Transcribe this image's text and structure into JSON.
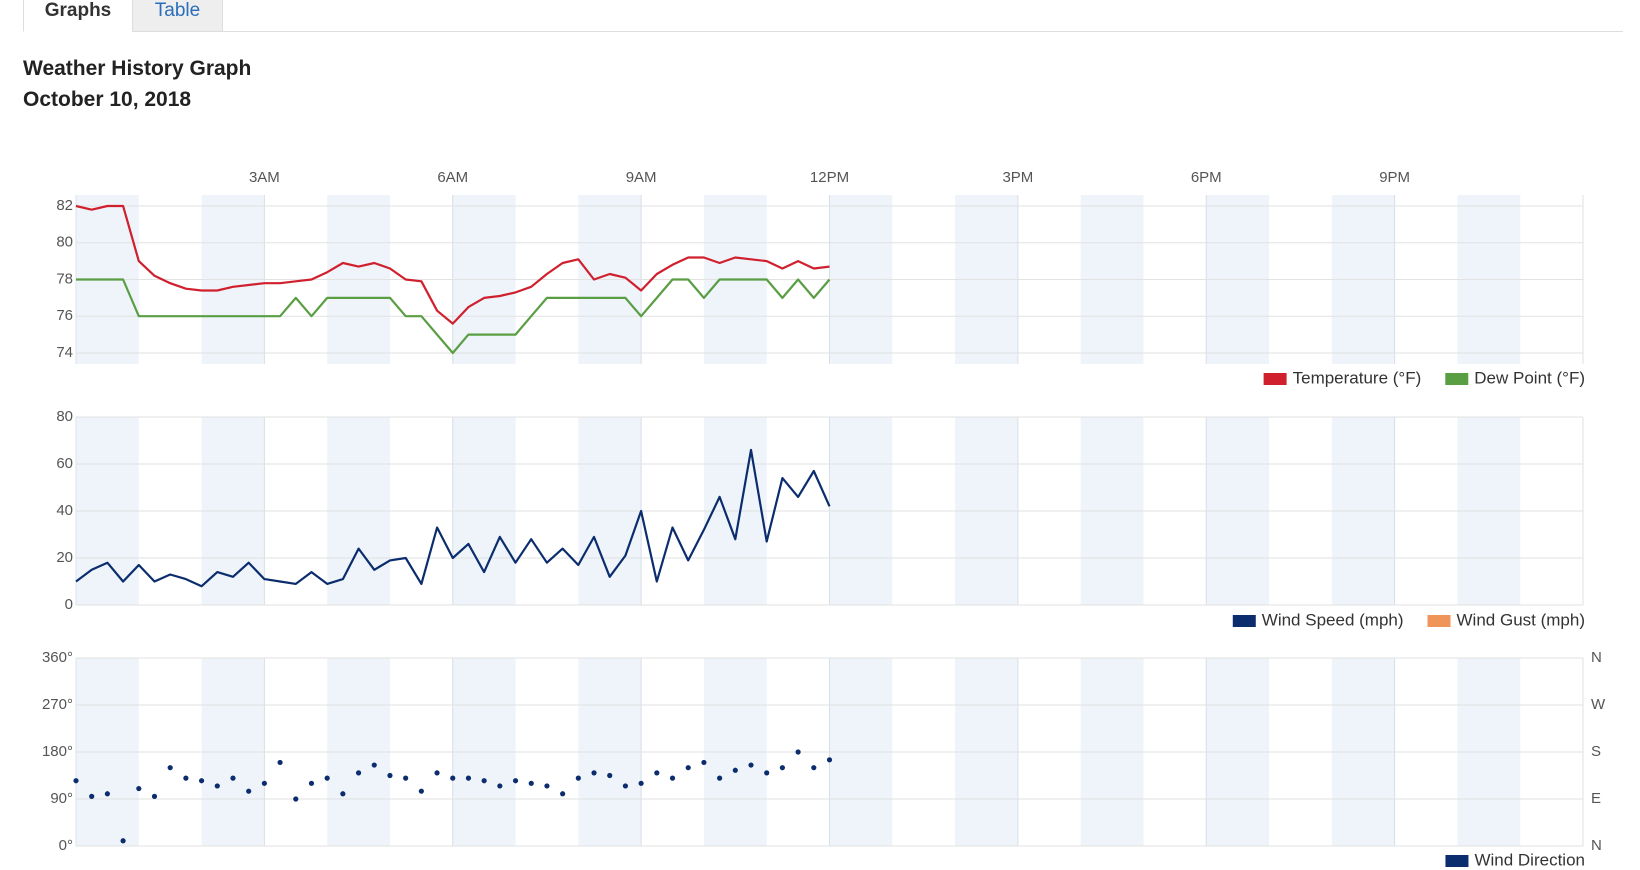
{
  "tabs": [
    "Graphs",
    "Table"
  ],
  "header": {
    "title": "Weather History Graph",
    "date": "October 10, 2018"
  },
  "chart_data": [
    {
      "type": "line",
      "xlim": [
        0,
        24
      ],
      "xticks": [
        {
          "value": 3,
          "label": "3AM"
        },
        {
          "value": 6,
          "label": "6AM"
        },
        {
          "value": 9,
          "label": "9AM"
        },
        {
          "value": 12,
          "label": "12PM"
        },
        {
          "value": 15,
          "label": "3PM"
        },
        {
          "value": 18,
          "label": "6PM"
        },
        {
          "value": 21,
          "label": "9PM"
        }
      ],
      "x": [
        0,
        0.25,
        0.5,
        0.75,
        1,
        1.25,
        1.5,
        1.75,
        2,
        2.25,
        2.5,
        2.75,
        3,
        3.25,
        3.5,
        3.75,
        4,
        4.25,
        4.5,
        4.75,
        5,
        5.25,
        5.5,
        5.75,
        6,
        6.25,
        6.5,
        6.75,
        7,
        7.25,
        7.5,
        7.75,
        8,
        8.25,
        8.5,
        8.75,
        9,
        9.25,
        9.5,
        9.75,
        10,
        10.25,
        10.5,
        10.75,
        11,
        11.25,
        11.5,
        11.75,
        12
      ],
      "ylim": [
        73.4,
        82.6
      ],
      "yticks": [
        74,
        76,
        78,
        80,
        82
      ],
      "grid": true,
      "series": [
        {
          "name": "Temperature (°F)",
          "color": "#d0202e",
          "values": [
            82,
            81.8,
            82,
            82,
            79,
            78.2,
            77.8,
            77.5,
            77.4,
            77.4,
            77.6,
            77.7,
            77.8,
            77.8,
            77.9,
            78,
            78.4,
            78.9,
            78.7,
            78.9,
            78.6,
            78,
            77.9,
            76.3,
            75.6,
            76.5,
            77,
            77.1,
            77.3,
            77.6,
            78.3,
            78.9,
            79.1,
            78,
            78.3,
            78.1,
            77.4,
            78.3,
            78.8,
            79.2,
            79.2,
            78.9,
            79.2,
            79.1,
            79,
            78.6,
            79,
            78.6,
            78.7
          ]
        },
        {
          "name": "Dew Point (°F)",
          "color": "#5a9e44",
          "values": [
            78,
            78,
            78,
            78,
            76,
            76,
            76,
            76,
            76,
            76,
            76,
            76,
            76,
            76,
            77,
            76,
            77,
            77,
            77,
            77,
            77,
            76,
            76,
            75,
            74,
            75,
            75,
            75,
            75,
            76,
            77,
            77,
            77,
            77,
            77,
            77,
            76,
            77,
            78,
            78,
            77,
            78,
            78,
            78,
            78,
            77,
            78,
            77,
            78
          ]
        }
      ]
    },
    {
      "type": "line",
      "x": [
        0,
        0.25,
        0.5,
        0.75,
        1,
        1.25,
        1.5,
        1.75,
        2,
        2.25,
        2.5,
        2.75,
        3,
        3.25,
        3.5,
        3.75,
        4,
        4.25,
        4.5,
        4.75,
        5,
        5.25,
        5.5,
        5.75,
        6,
        6.25,
        6.5,
        6.75,
        7,
        7.25,
        7.5,
        7.75,
        8,
        8.25,
        8.5,
        8.75,
        9,
        9.25,
        9.5,
        9.75,
        10,
        10.25,
        10.5,
        10.75,
        11,
        11.25,
        11.5,
        11.75,
        12
      ],
      "ylim": [
        0,
        80
      ],
      "yticks": [
        0,
        20,
        40,
        60,
        80
      ],
      "grid": true,
      "series": [
        {
          "name": "Wind Speed (mph)",
          "color": "#0b2d6e",
          "values": [
            10,
            15,
            18,
            10,
            17,
            10,
            13,
            11,
            8,
            14,
            12,
            18,
            11,
            10,
            9,
            14,
            9,
            11,
            24,
            15,
            19,
            20,
            9,
            33,
            20,
            26,
            14,
            29,
            18,
            28,
            18,
            24,
            17,
            29,
            12,
            21,
            40,
            10,
            33,
            19,
            32,
            46,
            28,
            66,
            27,
            54,
            46,
            57,
            42
          ]
        },
        {
          "name": "Wind Gust (mph)",
          "color": "#f0955a",
          "values": [
            null,
            null,
            null,
            null,
            null,
            null,
            null,
            null,
            null,
            null,
            null,
            null,
            null,
            null,
            null,
            null,
            null,
            null,
            null,
            null,
            null,
            null,
            null,
            null,
            null,
            null,
            null,
            null,
            null,
            null,
            null,
            null,
            null,
            null,
            null,
            null,
            null,
            null,
            null,
            null,
            null,
            null,
            null,
            null,
            null,
            null,
            null,
            null,
            null
          ]
        }
      ]
    },
    {
      "type": "scatter",
      "x": [
        0,
        0.25,
        0.5,
        0.75,
        1,
        1.25,
        1.5,
        1.75,
        2,
        2.25,
        2.5,
        2.75,
        3,
        3.25,
        3.5,
        3.75,
        4,
        4.25,
        4.5,
        4.75,
        5,
        5.25,
        5.5,
        5.75,
        6,
        6.25,
        6.5,
        6.75,
        7,
        7.25,
        7.5,
        7.75,
        8,
        8.25,
        8.5,
        8.75,
        9,
        9.25,
        9.5,
        9.75,
        10,
        10.25,
        10.5,
        10.75,
        11,
        11.25,
        11.5,
        11.75,
        12
      ],
      "ylim": [
        0,
        360
      ],
      "yticks": [
        {
          "value": 0,
          "label": "0°"
        },
        {
          "value": 90,
          "label": "90°"
        },
        {
          "value": 180,
          "label": "180°"
        },
        {
          "value": 270,
          "label": "270°"
        },
        {
          "value": 360,
          "label": "360°"
        }
      ],
      "y2lim": [
        0,
        360
      ],
      "y2ticks": [
        {
          "value": 0,
          "label": "N"
        },
        {
          "value": 90,
          "label": "E"
        },
        {
          "value": 180,
          "label": "S"
        },
        {
          "value": 270,
          "label": "W"
        },
        {
          "value": 360,
          "label": "N"
        }
      ],
      "grid": true,
      "series": [
        {
          "name": "Wind Direction",
          "color": "#0b2d6e",
          "values": [
            125,
            95,
            100,
            10,
            110,
            95,
            150,
            130,
            125,
            115,
            130,
            105,
            120,
            160,
            90,
            120,
            130,
            100,
            140,
            155,
            135,
            130,
            105,
            140,
            130,
            130,
            125,
            115,
            125,
            120,
            115,
            100,
            130,
            140,
            135,
            115,
            120,
            140,
            130,
            150,
            160,
            130,
            145,
            155,
            140,
            150,
            180,
            150,
            165
          ]
        }
      ]
    }
  ]
}
